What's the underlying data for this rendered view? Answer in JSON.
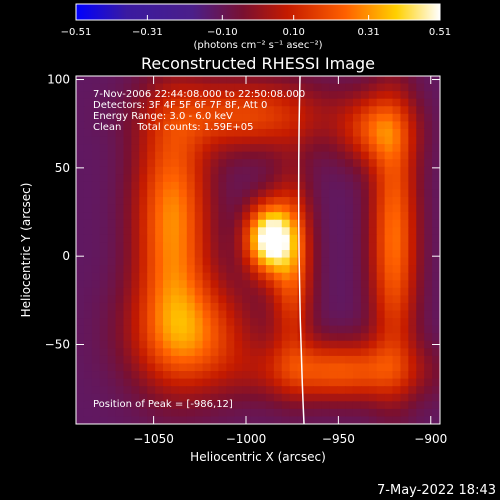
{
  "chart_data": {
    "type": "heatmap",
    "title": "Reconstructed RHESSI Image",
    "xlabel": "Heliocentric X (arcsec)",
    "ylabel": "Heliocentric Y (arcsec)",
    "xlim": [
      -1092,
      -895
    ],
    "ylim": [
      -95,
      102
    ],
    "x_ticks": [
      -1050,
      -1000,
      -950,
      -900
    ],
    "y_ticks": [
      -50,
      0,
      50,
      100
    ],
    "x_tick_labels": [
      "−1050",
      "−1000",
      "−950",
      "−900"
    ],
    "y_tick_labels": [
      "−50",
      "0",
      "50",
      "100"
    ],
    "colorbar": {
      "range": [
        -0.51,
        0.51
      ],
      "ticks": [
        -0.51,
        -0.31,
        -0.1,
        0.1,
        0.31,
        0.51
      ],
      "tick_labels": [
        "−0.51",
        "−0.31",
        "−0.10",
        "0.10",
        "0.31",
        "0.51"
      ],
      "units": "(photons cm⁻² s⁻¹ asec⁻²)",
      "colormap": [
        "#0000ff",
        "#3a1aa0",
        "#4b1f8a",
        "#7a1030",
        "#c41a00",
        "#ff6000",
        "#ffd000",
        "#ffffff"
      ]
    },
    "annotations": [
      "7-Nov-2006 22:44:08.000 to 22:50:08.000",
      "Detectors: 3F 4F 5F 6F 7F 8F, Att 0",
      "Energy Range: 3.0 - 6.0 keV",
      "Clean     Total counts: 1.59E+05"
    ],
    "peak_label": "Position of Peak = [-986,12]",
    "peak": {
      "x": -986,
      "y": 12
    },
    "sources": [
      {
        "x": -1040,
        "y": 20,
        "sx": 14,
        "sy": 45,
        "value": 0.3
      },
      {
        "x": -1030,
        "y": -45,
        "sx": 22,
        "sy": 22,
        "value": 0.22
      },
      {
        "x": -988,
        "y": 10,
        "sx": 9,
        "sy": 14,
        "value": 0.51
      },
      {
        "x": -975,
        "y": -5,
        "sx": 8,
        "sy": 35,
        "value": 0.2
      },
      {
        "x": -1000,
        "y": 80,
        "sx": 30,
        "sy": 14,
        "value": 0.18
      },
      {
        "x": -920,
        "y": 10,
        "sx": 9,
        "sy": 50,
        "value": 0.26
      },
      {
        "x": -950,
        "y": -65,
        "sx": 30,
        "sy": 12,
        "value": 0.22
      },
      {
        "x": -930,
        "y": 72,
        "sx": 14,
        "sy": 14,
        "value": 0.16
      }
    ]
  },
  "footer": {
    "timestamp": "7-May-2022 18:43"
  }
}
